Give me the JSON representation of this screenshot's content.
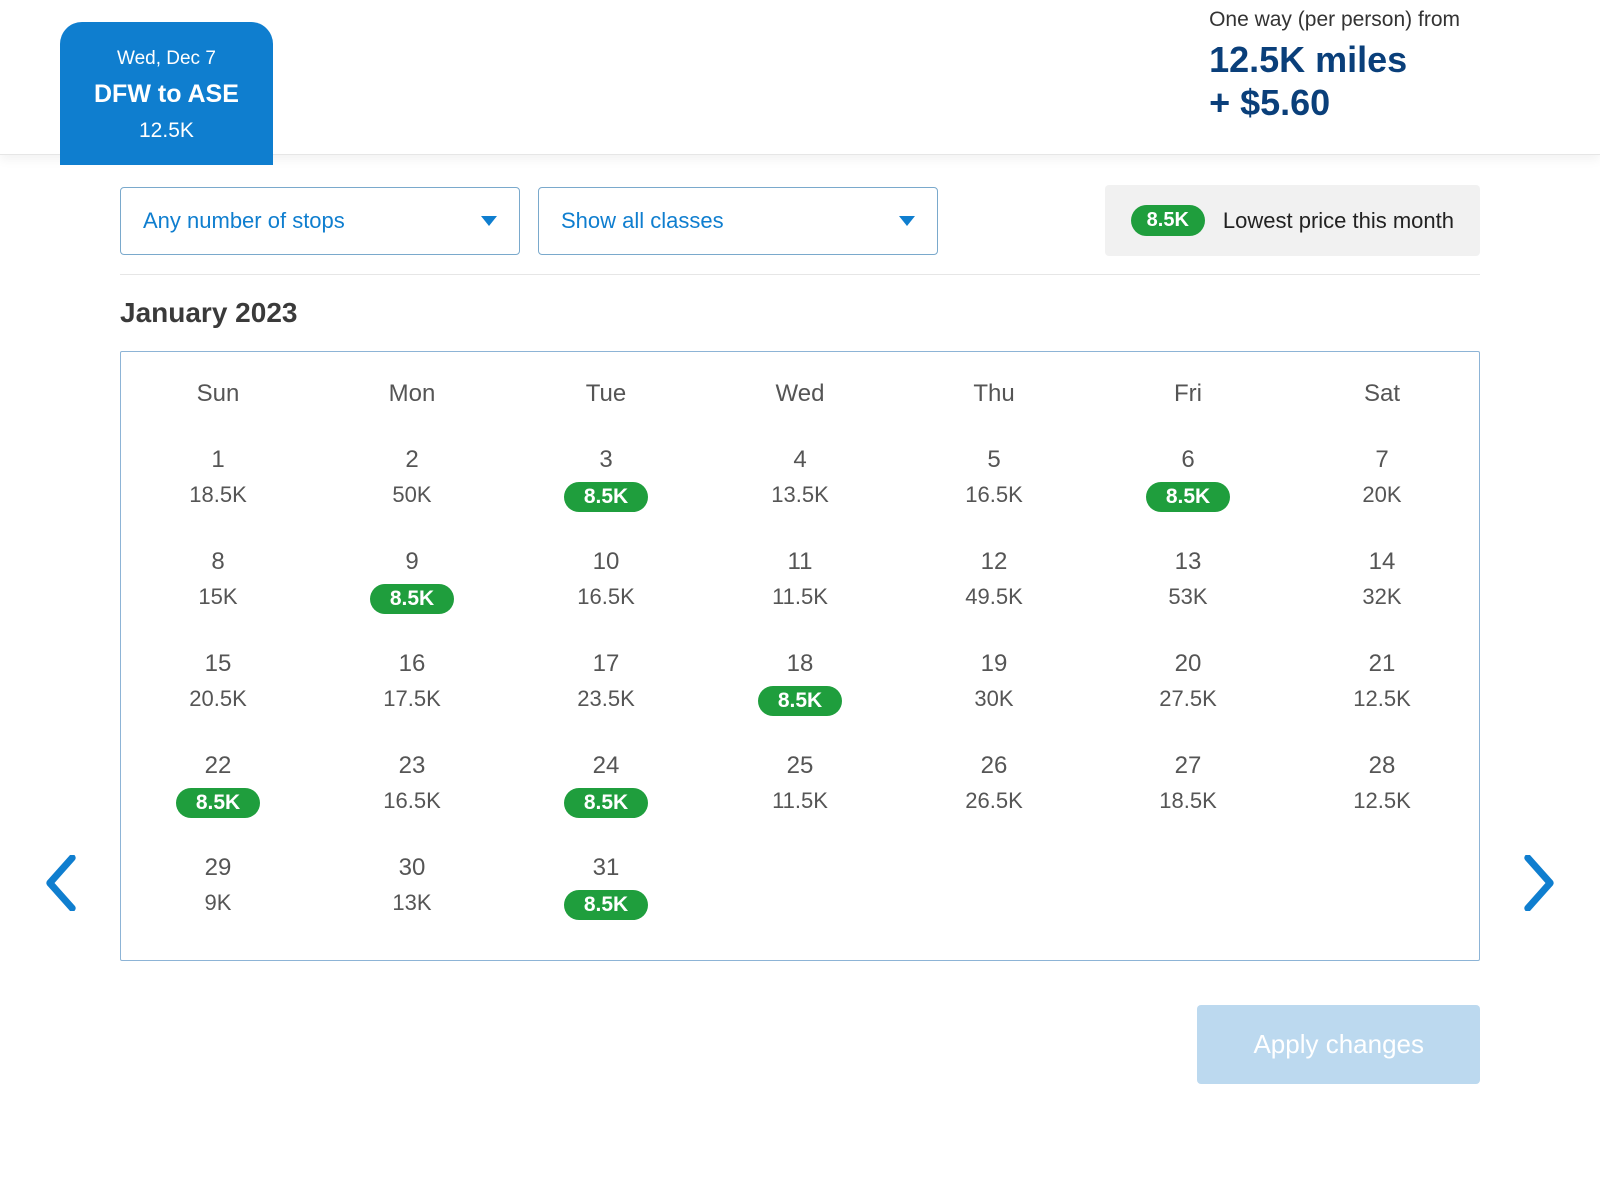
{
  "colors": {
    "brand_blue": "#0f7ecf",
    "dark_blue": "#0a3f7a",
    "lowest_green": "#1f9e3d",
    "apply_bg": "#bcd9ef",
    "border_blue": "#8db4d6",
    "legend_bg": "#f1f1f1",
    "text_gray": "#555555"
  },
  "header": {
    "trip": {
      "date": "Wed, Dec 7",
      "route": "DFW to ASE",
      "miles": "12.5K"
    },
    "summary": {
      "label": "One way (per person) from",
      "miles": "12.5K miles",
      "fee": "+ $5.60"
    }
  },
  "filters": {
    "stops": "Any number of stops",
    "classes": "Show all classes"
  },
  "legend": {
    "badge": "8.5K",
    "text": "Lowest price this month"
  },
  "calendar": {
    "month_label": "January 2023",
    "weekdays": [
      "Sun",
      "Mon",
      "Tue",
      "Wed",
      "Thu",
      "Fri",
      "Sat"
    ],
    "days": [
      {
        "day": "1",
        "price": "18.5K",
        "lowest": false
      },
      {
        "day": "2",
        "price": "50K",
        "lowest": false
      },
      {
        "day": "3",
        "price": "8.5K",
        "lowest": true
      },
      {
        "day": "4",
        "price": "13.5K",
        "lowest": false
      },
      {
        "day": "5",
        "price": "16.5K",
        "lowest": false
      },
      {
        "day": "6",
        "price": "8.5K",
        "lowest": true
      },
      {
        "day": "7",
        "price": "20K",
        "lowest": false
      },
      {
        "day": "8",
        "price": "15K",
        "lowest": false
      },
      {
        "day": "9",
        "price": "8.5K",
        "lowest": true
      },
      {
        "day": "10",
        "price": "16.5K",
        "lowest": false
      },
      {
        "day": "11",
        "price": "11.5K",
        "lowest": false
      },
      {
        "day": "12",
        "price": "49.5K",
        "lowest": false
      },
      {
        "day": "13",
        "price": "53K",
        "lowest": false
      },
      {
        "day": "14",
        "price": "32K",
        "lowest": false
      },
      {
        "day": "15",
        "price": "20.5K",
        "lowest": false
      },
      {
        "day": "16",
        "price": "17.5K",
        "lowest": false
      },
      {
        "day": "17",
        "price": "23.5K",
        "lowest": false
      },
      {
        "day": "18",
        "price": "8.5K",
        "lowest": true
      },
      {
        "day": "19",
        "price": "30K",
        "lowest": false
      },
      {
        "day": "20",
        "price": "27.5K",
        "lowest": false
      },
      {
        "day": "21",
        "price": "12.5K",
        "lowest": false
      },
      {
        "day": "22",
        "price": "8.5K",
        "lowest": true
      },
      {
        "day": "23",
        "price": "16.5K",
        "lowest": false
      },
      {
        "day": "24",
        "price": "8.5K",
        "lowest": true
      },
      {
        "day": "25",
        "price": "11.5K",
        "lowest": false
      },
      {
        "day": "26",
        "price": "26.5K",
        "lowest": false
      },
      {
        "day": "27",
        "price": "18.5K",
        "lowest": false
      },
      {
        "day": "28",
        "price": "12.5K",
        "lowest": false
      },
      {
        "day": "29",
        "price": "9K",
        "lowest": false
      },
      {
        "day": "30",
        "price": "13K",
        "lowest": false
      },
      {
        "day": "31",
        "price": "8.5K",
        "lowest": true
      }
    ]
  },
  "buttons": {
    "apply": "Apply changes"
  }
}
